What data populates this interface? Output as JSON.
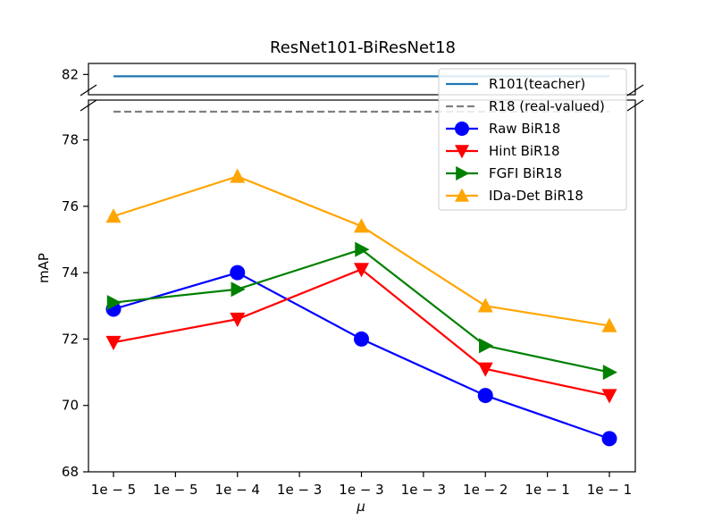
{
  "chart_data": {
    "type": "line",
    "title": "ResNet101-BiResNet18",
    "xlabel": "μ",
    "ylabel": "mAP",
    "x_ticks": [
      "1e − 5",
      "1e − 5",
      "1e − 4",
      "1e − 3",
      "1e − 3",
      "1e − 3",
      "1e − 2",
      "1e − 1",
      "1e − 1"
    ],
    "x_points": [
      0,
      2,
      4,
      6,
      8
    ],
    "ylim_lower": [
      68,
      79.2
    ],
    "ylim_upper": [
      80.9,
      82.6
    ],
    "y_ticks_lower": [
      68,
      70,
      72,
      74,
      76,
      78
    ],
    "y_ticks_upper": [
      82
    ],
    "grid": false,
    "legend_position": "top-right",
    "reference_lines": [
      {
        "name": "R101(teacher)",
        "value": 81.9,
        "color": "#1f77b4",
        "style": "solid"
      },
      {
        "name": "R18 (real-valued)",
        "value": 78.85,
        "color": "#808080",
        "style": "dashed"
      }
    ],
    "series": [
      {
        "name": "Raw BiR18",
        "color": "#0000ff",
        "marker": "circle",
        "values": [
          72.9,
          74.0,
          72.0,
          70.3,
          69.0
        ]
      },
      {
        "name": "Hint BiR18",
        "color": "#ff0000",
        "marker": "triangle-down",
        "values": [
          71.9,
          72.6,
          74.1,
          71.1,
          70.3
        ]
      },
      {
        "name": "FGFI BiR18",
        "color": "#008000",
        "marker": "triangle-right",
        "values": [
          73.1,
          73.5,
          74.7,
          71.8,
          71.0
        ]
      },
      {
        "name": "IDa-Det BiR18",
        "color": "#ffa500",
        "marker": "triangle-up",
        "values": [
          75.7,
          76.9,
          75.4,
          73.0,
          72.4
        ]
      }
    ]
  }
}
